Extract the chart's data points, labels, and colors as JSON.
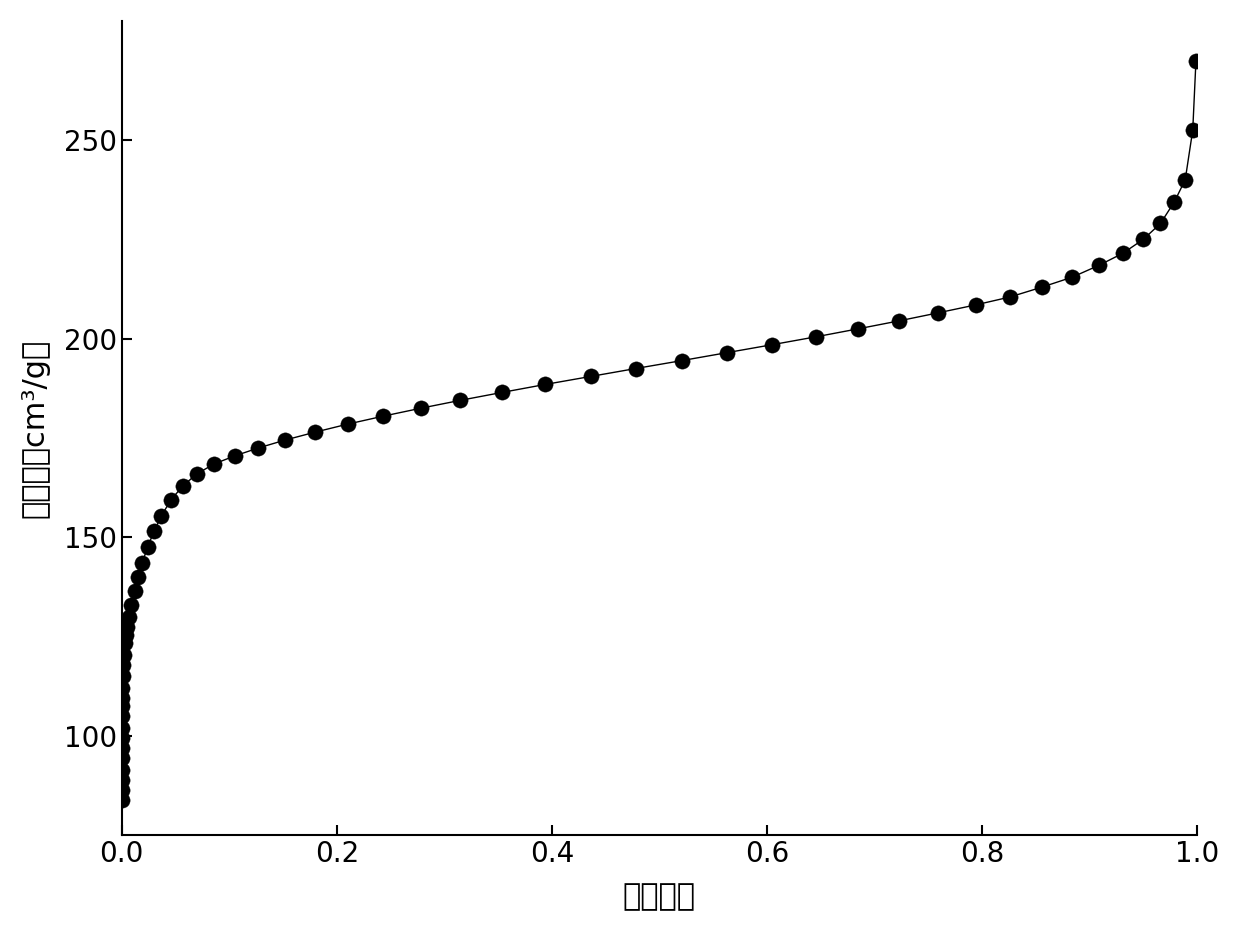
{
  "x": [
    5e-06,
    1e-05,
    2e-05,
    4e-05,
    7e-05,
    0.0001,
    0.00015,
    0.0002,
    0.0003,
    0.0004,
    0.0005,
    0.0007,
    0.001,
    0.0015,
    0.002,
    0.003,
    0.004,
    0.005,
    0.007,
    0.009,
    0.012,
    0.015,
    0.019,
    0.024,
    0.03,
    0.037,
    0.046,
    0.057,
    0.07,
    0.086,
    0.105,
    0.127,
    0.152,
    0.18,
    0.21,
    0.243,
    0.278,
    0.315,
    0.354,
    0.394,
    0.436,
    0.478,
    0.521,
    0.563,
    0.605,
    0.646,
    0.685,
    0.723,
    0.759,
    0.794,
    0.826,
    0.856,
    0.884,
    0.909,
    0.931,
    0.95,
    0.966,
    0.979,
    0.989,
    0.996,
    0.999
  ],
  "y": [
    84.0,
    86.5,
    89.0,
    91.5,
    94.5,
    97.0,
    99.5,
    102.0,
    105.0,
    107.5,
    109.5,
    112.0,
    115.0,
    118.0,
    120.5,
    123.5,
    125.5,
    127.5,
    130.0,
    133.0,
    136.5,
    140.0,
    143.5,
    147.5,
    151.5,
    155.5,
    159.5,
    163.0,
    166.0,
    168.5,
    170.5,
    172.5,
    174.5,
    176.5,
    178.5,
    180.5,
    182.5,
    184.5,
    186.5,
    188.5,
    190.5,
    192.5,
    194.5,
    196.5,
    198.5,
    200.5,
    202.5,
    204.5,
    206.5,
    208.5,
    210.5,
    213.0,
    215.5,
    218.5,
    221.5,
    225.0,
    229.0,
    234.5,
    240.0,
    252.5,
    270.0
  ],
  "xlabel": "相对压力",
  "ylabel": "吸附量（cm³/g）",
  "xlim": [
    0.0,
    1.0
  ],
  "ylim": [
    75,
    280
  ],
  "xticks": [
    0.0,
    0.2,
    0.4,
    0.6,
    0.8,
    1.0
  ],
  "yticks": [
    100,
    150,
    200,
    250
  ],
  "marker_color": "#000000",
  "line_color": "#000000",
  "marker_size": 11,
  "line_width": 1.0,
  "xlabel_fontsize": 22,
  "ylabel_fontsize": 22,
  "tick_fontsize": 20,
  "background_color": "#ffffff"
}
